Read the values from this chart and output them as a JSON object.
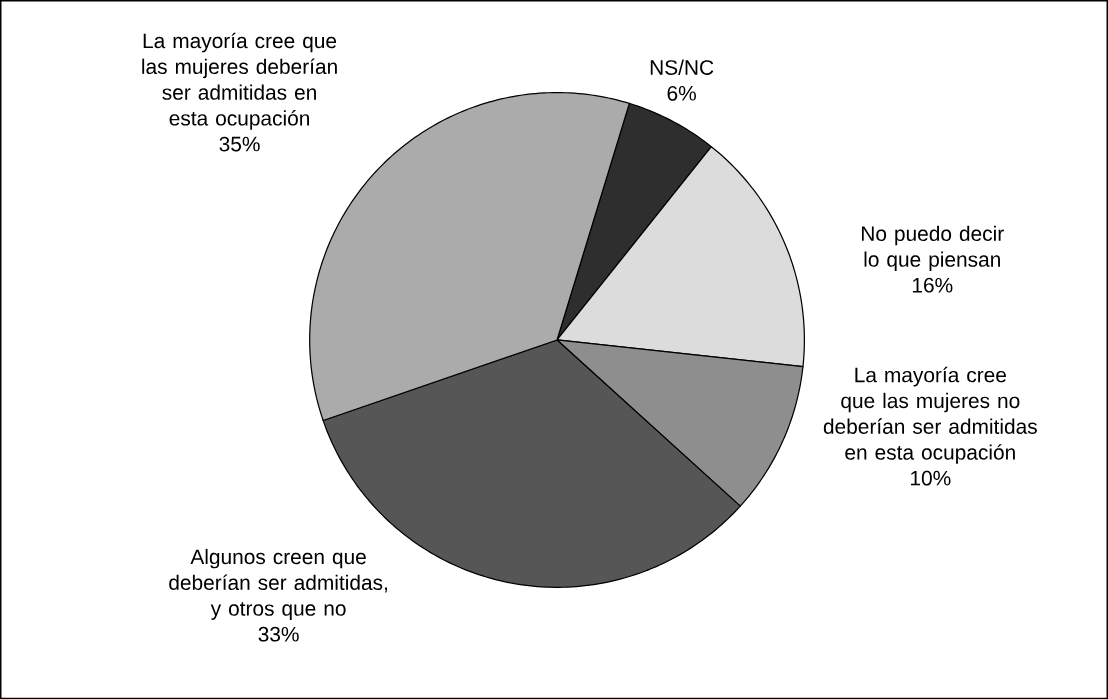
{
  "chart_data": {
    "type": "pie",
    "categories": [
      "NS/NC",
      "No puedo decir lo que piensan",
      "La mayoría cree que las mujeres no deberían ser admitidas en esta ocupación",
      "Algunos creen que deberían ser admitidas, y otros que no",
      "La mayoría cree que las mujeres deberían ser admitidas en esta ocupación"
    ],
    "values": [
      6,
      16,
      10,
      33,
      35
    ],
    "colors": [
      "#2e2e2e",
      "#dcdcdc",
      "#8e8e8e",
      "#565656",
      "#ababab"
    ],
    "value_labels": [
      "6%",
      "16%",
      "10%",
      "33%",
      "35%"
    ]
  }
}
